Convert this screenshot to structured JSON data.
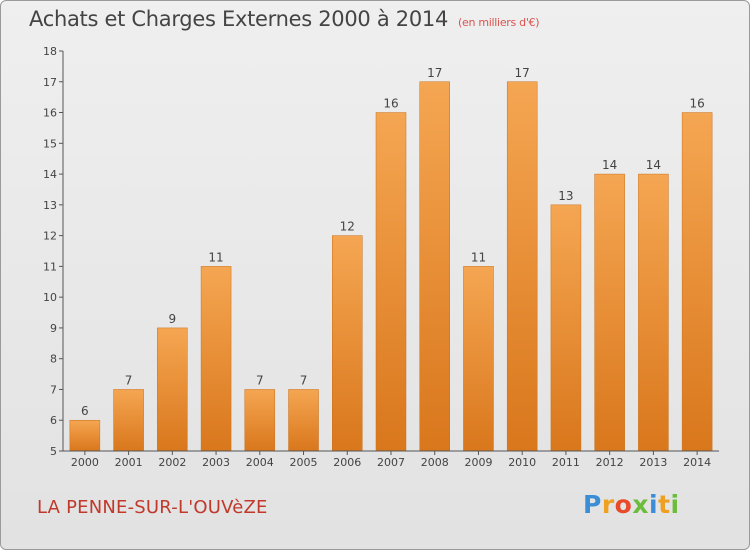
{
  "header": {
    "title": "Achats et Charges Externes 2000 à 2014",
    "unit": "(en milliers d'€)"
  },
  "footer": {
    "commune": "LA PENNE-SUR-L'OUVèZE",
    "logo_letters": [
      "P",
      "r",
      "o",
      "x",
      "i",
      "t",
      "i"
    ],
    "logo_colors": [
      "#3b8ed6",
      "#f0a020",
      "#e84a2a",
      "#6cbd3c",
      "#3b8ed6",
      "#f0a020",
      "#6cbd3c"
    ]
  },
  "chart_data": {
    "type": "bar",
    "title": "Achats et Charges Externes 2000 à 2014",
    "subtitle": "(en milliers d'€)",
    "categories": [
      "2000",
      "2001",
      "2002",
      "2003",
      "2004",
      "2005",
      "2006",
      "2007",
      "2008",
      "2009",
      "2010",
      "2011",
      "2012",
      "2013",
      "2014"
    ],
    "values": [
      6,
      7,
      9,
      11,
      7,
      7,
      12,
      16,
      17,
      11,
      17,
      13,
      14,
      14,
      16
    ],
    "ylim": [
      5,
      18
    ],
    "yticks": [
      5,
      6,
      7,
      8,
      9,
      10,
      11,
      12,
      13,
      14,
      15,
      16,
      17,
      18
    ],
    "bar_color_top": "#f5a652",
    "bar_color_bottom": "#d9771c",
    "grid": false,
    "data_labels": true
  }
}
